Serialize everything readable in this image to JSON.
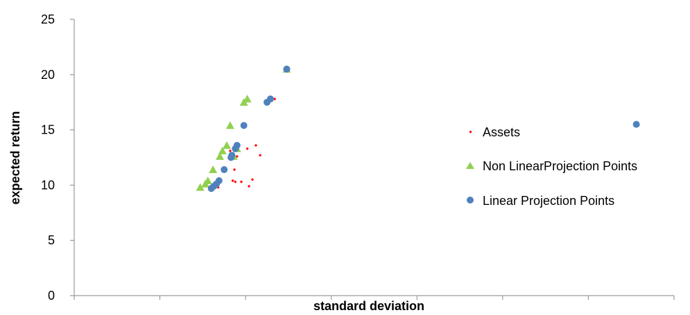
{
  "chart_data": {
    "type": "scatter",
    "xlabel": "standard deviation",
    "ylabel": "expected return",
    "xlim": [
      0,
      7
    ],
    "ylim": [
      0,
      25
    ],
    "x_ticks": [
      0,
      1,
      2,
      3,
      4,
      5,
      6,
      7
    ],
    "y_ticks": [
      0,
      5,
      10,
      15,
      20,
      25
    ],
    "y_tick_labels": [
      "0",
      "5",
      "10",
      "15",
      "20",
      "25"
    ],
    "grid": false,
    "legend_position": "right",
    "series": [
      {
        "name": "Assets",
        "marker": "diamond",
        "color": "#FF0000",
        "points": [
          [
            1.68,
            9.8
          ],
          [
            1.82,
            13.1
          ],
          [
            1.85,
            10.4
          ],
          [
            1.87,
            11.4
          ],
          [
            1.88,
            10.3
          ],
          [
            1.9,
            12.6
          ],
          [
            1.95,
            10.3
          ],
          [
            2.02,
            13.3
          ],
          [
            2.04,
            9.9
          ],
          [
            2.08,
            10.5
          ],
          [
            2.12,
            13.6
          ],
          [
            2.17,
            12.7
          ],
          [
            2.28,
            17.6
          ],
          [
            2.34,
            17.8
          ],
          [
            2.48,
            20.5
          ]
        ]
      },
      {
        "name": "Non LinearProjection Points",
        "marker": "triangle",
        "color": "#92D050",
        "points": [
          [
            1.47,
            9.8
          ],
          [
            1.53,
            10.1
          ],
          [
            1.56,
            10.4
          ],
          [
            1.62,
            11.4
          ],
          [
            1.7,
            12.6
          ],
          [
            1.73,
            13.1
          ],
          [
            1.78,
            13.6
          ],
          [
            1.82,
            15.4
          ],
          [
            1.86,
            12.6
          ],
          [
            1.9,
            13.3
          ],
          [
            1.98,
            17.5
          ],
          [
            2.02,
            17.8
          ],
          [
            2.48,
            20.5
          ]
        ]
      },
      {
        "name": "Linear Projection Points",
        "marker": "circle",
        "color": "#4F81BD",
        "points": [
          [
            1.6,
            9.7
          ],
          [
            1.63,
            9.9
          ],
          [
            1.66,
            10.1
          ],
          [
            1.69,
            10.4
          ],
          [
            1.75,
            11.4
          ],
          [
            1.83,
            12.5
          ],
          [
            1.84,
            12.7
          ],
          [
            1.88,
            13.3
          ],
          [
            1.9,
            13.6
          ],
          [
            1.98,
            15.4
          ],
          [
            2.25,
            17.5
          ],
          [
            2.29,
            17.8
          ],
          [
            2.48,
            20.5
          ],
          [
            6.56,
            15.5
          ]
        ]
      }
    ]
  }
}
